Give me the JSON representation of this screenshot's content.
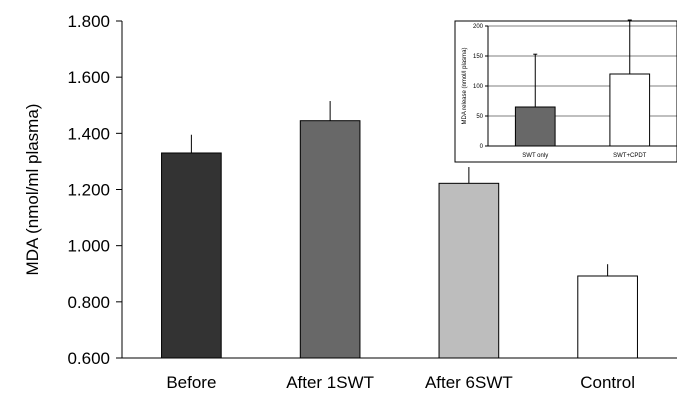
{
  "chart_data": [
    {
      "type": "bar",
      "ylabel": "MDA (nmol/ml plasma)",
      "ylim": [
        0.6,
        1.8
      ],
      "yticks": [
        "0.600",
        "0.800",
        "1.000",
        "1.200",
        "1.400",
        "1.600",
        "1.800"
      ],
      "categories": [
        "Before",
        "After 1SWT",
        "After 6SWT",
        "Control"
      ],
      "values": [
        1.33,
        1.445,
        1.222,
        0.892
      ],
      "errors": [
        0.065,
        0.07,
        0.058,
        0.042
      ],
      "colors": [
        "#333333",
        "#686868",
        "#bdbdbd",
        "#ffffff"
      ],
      "grid": false
    },
    {
      "type": "bar",
      "ylabel": "MDA release (nmol/l plasma)",
      "ylim": [
        0,
        200
      ],
      "yticks": [
        "0",
        "50",
        "100",
        "150",
        "200"
      ],
      "categories": [
        "SWT only",
        "SWT+CPDT"
      ],
      "values": [
        65,
        120
      ],
      "errors": [
        88,
        90
      ],
      "colors": [
        "#686868",
        "#ffffff"
      ],
      "grid": true
    }
  ]
}
